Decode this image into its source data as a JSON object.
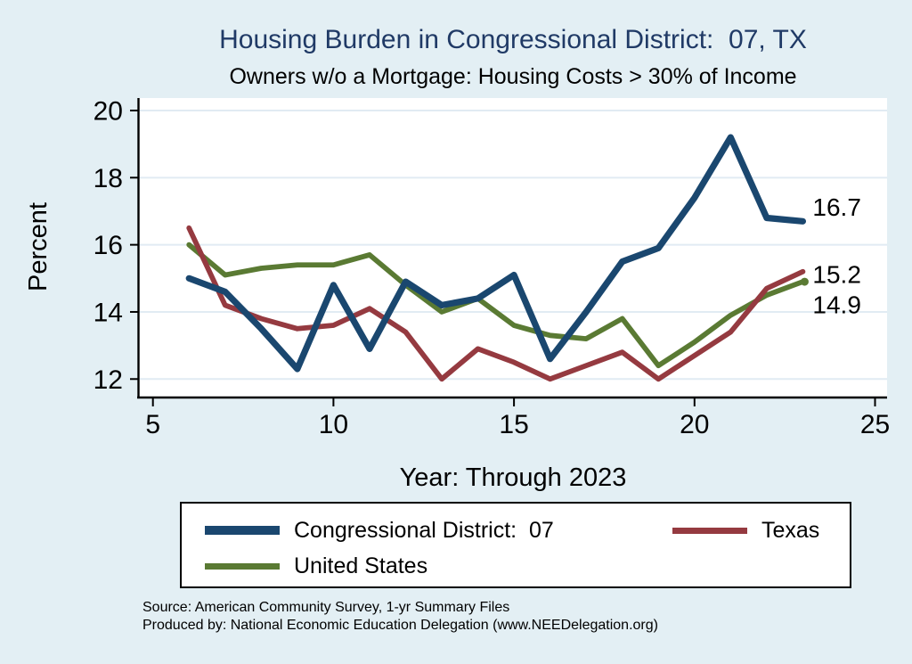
{
  "title": "Housing Burden in Congressional District:  07, TX",
  "subtitle": "Owners w/o a Mortgage: Housing Costs > 30% of Income",
  "y_axis_title": "Percent",
  "x_axis_title": "Year: Through 2023",
  "source_line1": "Source: American Community Survey, 1-yr Summary Files",
  "source_line2": "Produced by: National Economic Education Delegation (www.NEEDelegation.org)",
  "colors": {
    "navy": "#1a476f",
    "maroon": "#953a40",
    "olive": "#5a7a33",
    "background": "#e3eff4",
    "plot_background": "#ffffff",
    "gridline": "#e1ebf3",
    "axis": "#000000",
    "title_color": "#203a66"
  },
  "chart_data": {
    "type": "line",
    "x": [
      6,
      7,
      8,
      9,
      10,
      11,
      12,
      13,
      14,
      15,
      16,
      17,
      18,
      19,
      20,
      21,
      22,
      23
    ],
    "series": [
      {
        "name": "Congressional District:  07",
        "color_key": "navy",
        "values": [
          15.0,
          14.6,
          13.5,
          12.3,
          14.8,
          12.9,
          14.9,
          14.2,
          14.4,
          15.1,
          12.6,
          14.0,
          15.5,
          15.9,
          17.4,
          19.2,
          16.8,
          16.7
        ],
        "end_label": "16.7",
        "end_marker": false
      },
      {
        "name": "Texas",
        "color_key": "maroon",
        "values": [
          16.5,
          14.2,
          13.8,
          13.5,
          13.6,
          14.1,
          13.4,
          12.0,
          12.9,
          12.5,
          12.0,
          12.4,
          12.8,
          12.0,
          12.7,
          13.4,
          14.7,
          15.2
        ],
        "end_label": "15.2",
        "end_marker": false
      },
      {
        "name": "United States",
        "color_key": "olive",
        "values": [
          16.0,
          15.1,
          15.3,
          15.4,
          15.4,
          15.7,
          14.8,
          14.0,
          14.4,
          13.6,
          13.3,
          13.2,
          13.8,
          12.4,
          13.1,
          13.9,
          14.5,
          14.9
        ],
        "end_label": "14.9",
        "end_marker": true
      }
    ],
    "x_ticks": [
      5,
      10,
      15,
      20,
      25
    ],
    "y_ticks": [
      12,
      14,
      16,
      18,
      20
    ],
    "x_range": [
      4.6,
      25.3
    ],
    "y_range": [
      11.5,
      20.4
    ],
    "grid": true,
    "legend_position": "bottom"
  },
  "legend": {
    "items": [
      {
        "label": "Congressional District:  07"
      },
      {
        "label": "Texas"
      },
      {
        "label": "United States"
      }
    ]
  }
}
